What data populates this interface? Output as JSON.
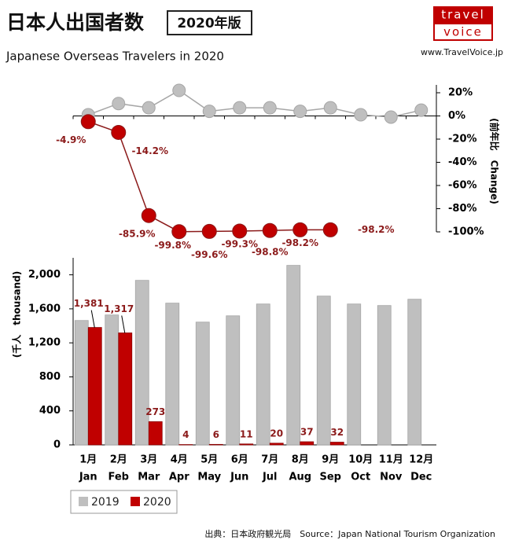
{
  "header": {
    "title": "日本人出国者数",
    "badge": "2020年版",
    "subtitle": "Japanese Overseas Travelers in 2020",
    "logo_top": "travel",
    "logo_bottom": "voice",
    "url": "www.TravelVoice.jp",
    "source": "出典：日本政府観光局　Source：Japan National Tourism Organization"
  },
  "chart_data": [
    {
      "type": "line",
      "y2label": "(前年比　Change)",
      "y2lim": [
        -100,
        20
      ],
      "y2ticks": [
        {
          "value": 20,
          "label": "20%"
        },
        {
          "value": 0,
          "label": "0%"
        },
        {
          "value": -20,
          "label": "-20%"
        },
        {
          "value": -40,
          "label": "-40%"
        },
        {
          "value": -60,
          "label": "-60%"
        },
        {
          "value": -80,
          "label": "-80%"
        },
        {
          "value": -100,
          "label": "-100%"
        }
      ],
      "series": [
        {
          "color": "#bfbfbf",
          "axis": "y2",
          "values": [
            1,
            10.7,
            7,
            22,
            4,
            7,
            7,
            4,
            7,
            1,
            -1,
            5
          ]
        },
        {
          "color": "#c00000",
          "axis": "y2",
          "values": [
            -4.9,
            -14.2,
            -85.9,
            -99.8,
            -99.6,
            -99.3,
            -98.8,
            -98.2,
            -98.2,
            null,
            null,
            null
          ],
          "value_labels": [
            "-4.9%",
            "-14.2%",
            "-85.9%",
            "-99.8%",
            "-99.6%",
            "-99.3%",
            "-98.8%",
            "-98.2%",
            "-98.2%",
            null,
            null,
            null
          ]
        }
      ]
    },
    {
      "type": "bar",
      "categories": [
        "1月",
        "2月",
        "3月",
        "4月",
        "5月",
        "6月",
        "7月",
        "8月",
        "9月",
        "10月",
        "11月",
        "12月"
      ],
      "categories_en": [
        "Jan",
        "Feb",
        "Mar",
        "Apr",
        "May",
        "Jun",
        "Jul",
        "Aug",
        "Sep",
        "Oct",
        "Nov",
        "Dec"
      ],
      "ylabel": "(千人　thousand)",
      "ylim": [
        0,
        2200
      ],
      "yticks": [
        0,
        400,
        800,
        {
          "value": 1200,
          "label": "1,200"
        },
        {
          "value": 1600,
          "label": "1,600"
        },
        {
          "value": 2000,
          "label": "2,000"
        }
      ],
      "legend": "bottom-left",
      "series": [
        {
          "name": "2019",
          "color": "#bfbfbf",
          "values": [
            1463,
            1528,
            1935,
            1667,
            1444,
            1518,
            1657,
            2111,
            1750,
            1657,
            1639,
            1713
          ]
        },
        {
          "name": "2020",
          "color": "#c00000",
          "values": [
            1381,
            1317,
            273,
            4,
            6,
            11,
            20,
            37,
            32,
            null,
            null,
            null
          ],
          "value_labels": [
            "1,381",
            "1,317",
            "273",
            "4",
            "6",
            "11",
            "20",
            "37",
            "32",
            null,
            null,
            null
          ]
        }
      ]
    }
  ]
}
